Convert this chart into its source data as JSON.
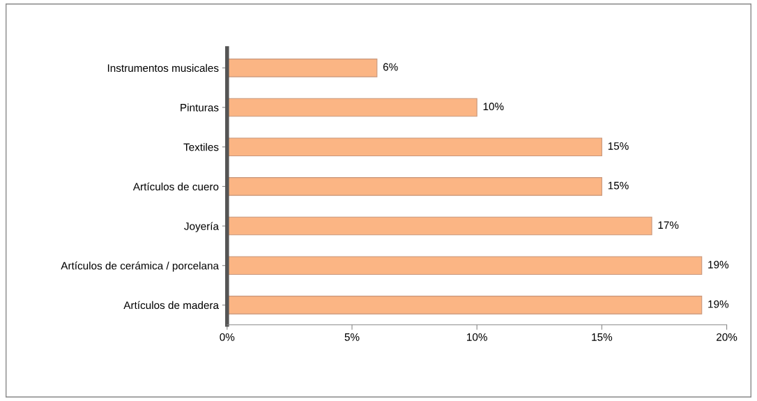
{
  "chart_data": {
    "type": "bar",
    "orientation": "horizontal",
    "categories": [
      "Instrumentos musicales",
      "Pinturas",
      "Textiles",
      "Artículos de cuero",
      "Joyería",
      "Artículos de cerámica / porcelana",
      "Artículos de madera"
    ],
    "values": [
      6,
      10,
      15,
      15,
      17,
      19,
      19
    ],
    "value_labels": [
      "6%",
      "10%",
      "15%",
      "15%",
      "17%",
      "19%",
      "19%"
    ],
    "color": "#fbb584",
    "xlim": [
      0,
      20
    ],
    "xticks": [
      {
        "value": 0,
        "label": "0%"
      },
      {
        "value": 5,
        "label": "5%"
      },
      {
        "value": 10,
        "label": "10%"
      },
      {
        "value": 15,
        "label": "15%"
      },
      {
        "value": 20,
        "label": "20%"
      }
    ],
    "grid": false,
    "legend": false
  }
}
